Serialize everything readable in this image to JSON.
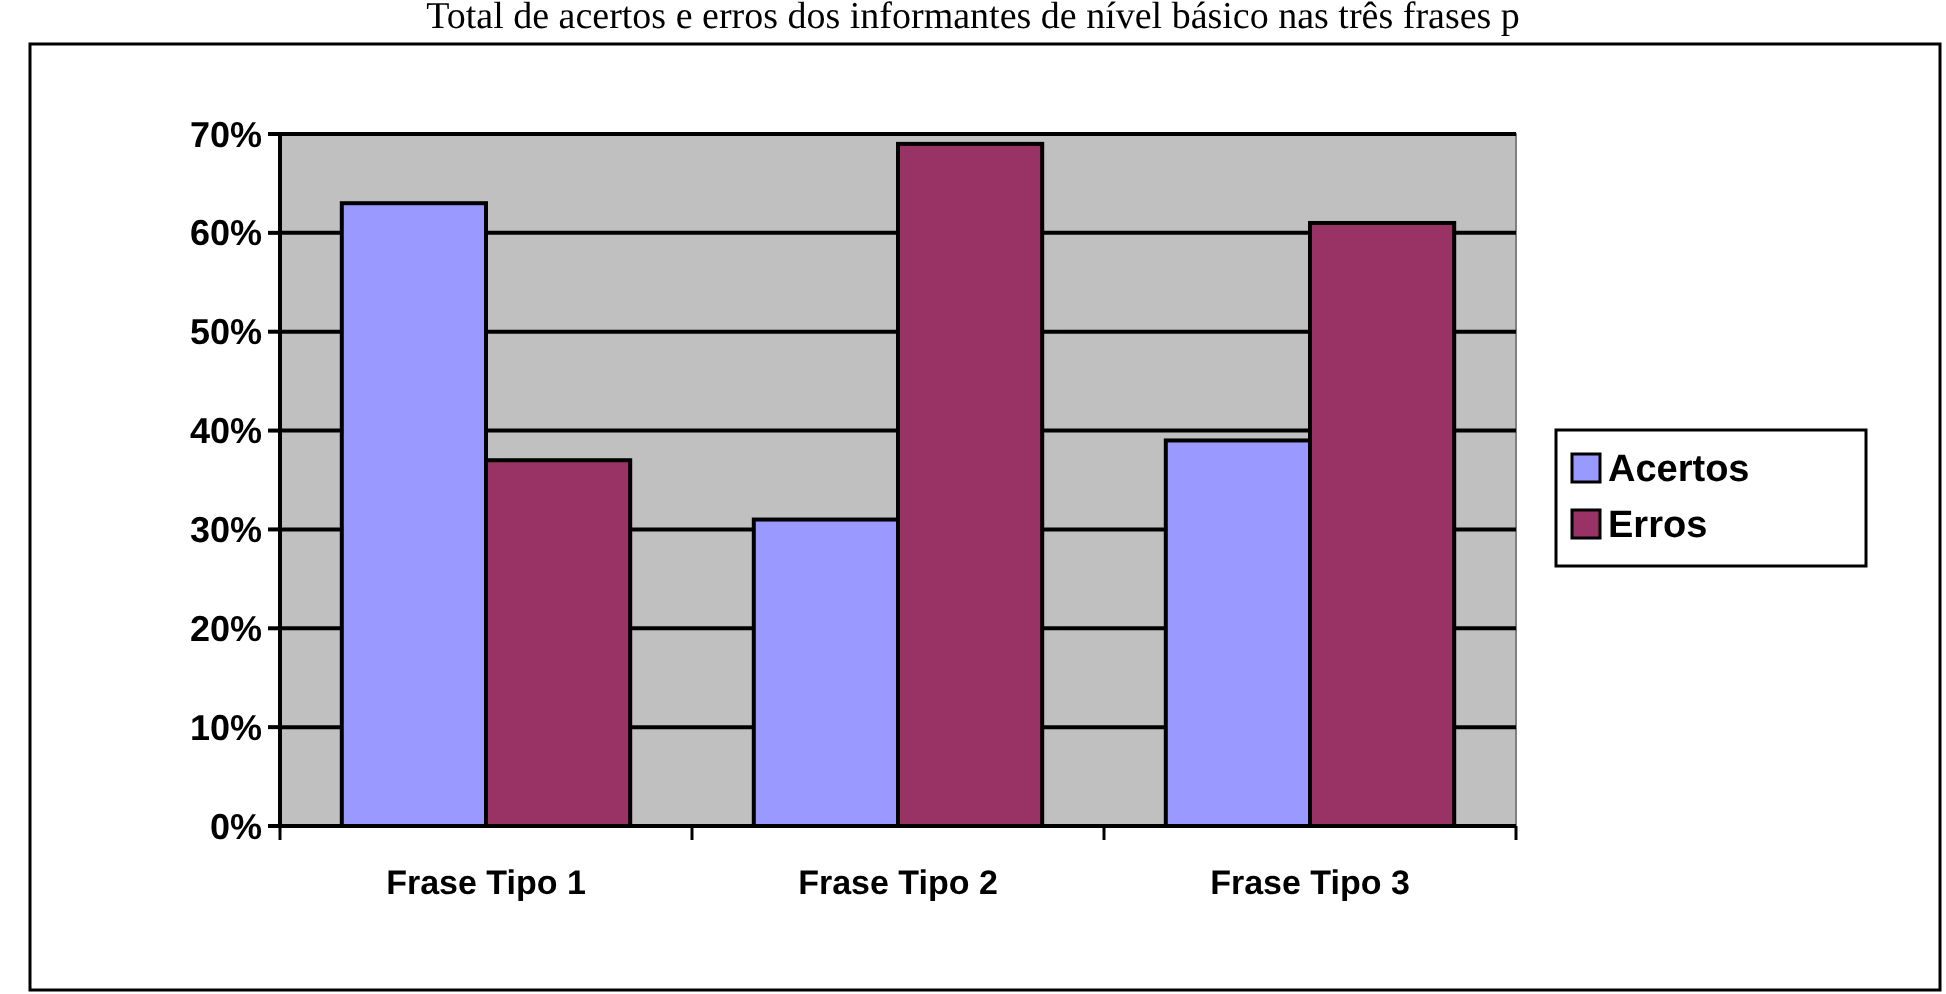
{
  "chart_data": {
    "type": "bar",
    "title": "Total de acertos e erros dos informantes de nível básico nas três frases p",
    "categories": [
      "Frase Tipo 1",
      "Frase Tipo 2",
      "Frase Tipo 3"
    ],
    "series": [
      {
        "name": "Acertos",
        "color": "#9999ff",
        "values": [
          63,
          31,
          39
        ]
      },
      {
        "name": "Erros",
        "color": "#993366",
        "values": [
          37,
          69,
          61
        ]
      }
    ],
    "ylim": [
      0,
      70
    ],
    "yticks": [
      {
        "value": 0,
        "label": "0%"
      },
      {
        "value": 10,
        "label": "10%"
      },
      {
        "value": 20,
        "label": "20%"
      },
      {
        "value": 30,
        "label": "30%"
      },
      {
        "value": 40,
        "label": "40%"
      },
      {
        "value": 50,
        "label": "50%"
      },
      {
        "value": 60,
        "label": "60%"
      },
      {
        "value": 70,
        "label": "70%"
      }
    ],
    "grid": "y",
    "legend": "right"
  }
}
